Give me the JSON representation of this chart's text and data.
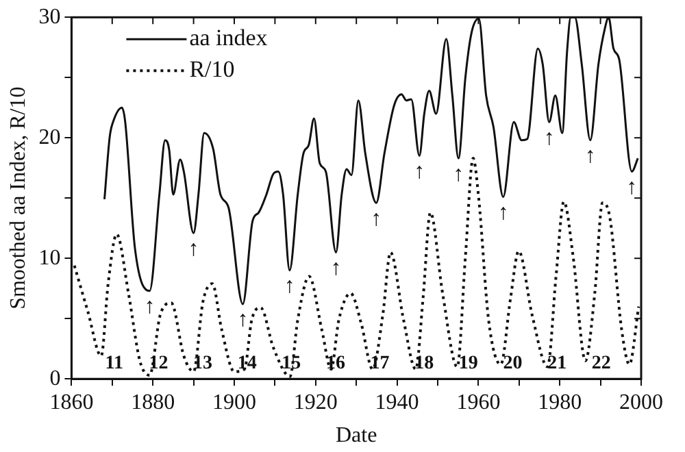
{
  "chart_data": {
    "type": "line",
    "xlabel": "Date",
    "ylabel": "Smoothed aa Index, R/10",
    "xlim": [
      1860,
      2000
    ],
    "xticks": [
      1860,
      {
        "value": 1870,
        "label": null
      },
      1880,
      {
        "value": 1890,
        "label": null
      },
      1900,
      {
        "value": 1910,
        "label": null
      },
      1920,
      {
        "value": 1930,
        "label": null
      },
      1940,
      {
        "value": 1950,
        "label": null
      },
      1960,
      {
        "value": 1970,
        "label": null
      },
      1980,
      {
        "value": 1990,
        "label": null
      },
      2000
    ],
    "ylim": [
      0,
      30
    ],
    "yticks": [
      0,
      {
        "value": 5,
        "label": null
      },
      10,
      {
        "value": 15,
        "label": null
      },
      20,
      {
        "value": 25,
        "label": null
      },
      30
    ],
    "grid": false,
    "legend": "top left",
    "marker": "none",
    "series": [
      {
        "name": "aa index",
        "color": "#111111",
        "line_style": "solid",
        "x": [
          1868.1,
          1869.4,
          1870.2,
          1872.4,
          1873.2,
          1875.6,
          1879.2,
          1881.6,
          1883.0,
          1884.0,
          1885.0,
          1886.7,
          1887.6,
          1890.0,
          1891.2,
          1892.6,
          1894.8,
          1896.6,
          1898.6,
          1902.1,
          1904.5,
          1906.0,
          1907.9,
          1909.6,
          1910.8,
          1912.0,
          1913.6,
          1915.6,
          1917.0,
          1918.3,
          1919.6,
          1921.0,
          1922.5,
          1925.0,
          1926.4,
          1927.6,
          1928.8,
          1930.5,
          1932.2,
          1934.9,
          1936.9,
          1939.3,
          1941.1,
          1942.3,
          1943.5,
          1945.5,
          1946.7,
          1947.9,
          1949.6,
          1952.1,
          1953.6,
          1955.1,
          1956.8,
          1958.3,
          1960.1,
          1961.9,
          1963.7,
          1966.1,
          1968.7,
          1970.6,
          1972.0,
          1974.6,
          1975.8,
          1977.4,
          1978.9,
          1980.6,
          1981.8,
          1982.7,
          1983.7,
          1985.4,
          1987.5,
          1989.5,
          1991.1,
          1992.0,
          1993.2,
          1994.6,
          1997.7,
          1999.2
        ],
        "values": [
          14.9,
          20.1,
          21.3,
          22.5,
          21.3,
          10.8,
          7.3,
          15.3,
          19.8,
          19.0,
          15.3,
          18.2,
          17.2,
          12.1,
          15.3,
          20.4,
          19.1,
          15.3,
          14.2,
          6.2,
          13.1,
          13.8,
          15.3,
          17.0,
          17.2,
          15.3,
          9.0,
          15.3,
          18.7,
          19.4,
          21.6,
          17.9,
          17.2,
          10.5,
          15.3,
          17.4,
          16.9,
          23.1,
          18.7,
          14.6,
          18.7,
          22.7,
          23.6,
          23.1,
          23.2,
          18.5,
          22.0,
          23.9,
          22.0,
          28.2,
          23.5,
          18.3,
          25.0,
          28.7,
          29.9,
          23.5,
          20.9,
          15.1,
          21.3,
          19.8,
          19.9,
          27.4,
          26.1,
          21.3,
          23.5,
          20.4,
          27.2,
          30,
          30,
          26.1,
          19.8,
          26.1,
          29.1,
          30,
          27.4,
          26.5,
          17.2,
          18.3
        ]
      },
      {
        "name": "R/10",
        "color": "#111111",
        "line_style": "dotted",
        "x": [
          1860.7,
          1864.0,
          1867.3,
          1869.0,
          1871.1,
          1874.0,
          1876.8,
          1879.2,
          1881.8,
          1884.5,
          1887.6,
          1890.0,
          1892.3,
          1894.6,
          1896.9,
          1900.0,
          1902.5,
          1904.3,
          1906.5,
          1909.6,
          1913.7,
          1915.6,
          1918.4,
          1921.5,
          1923.8,
          1925.7,
          1928.6,
          1931.2,
          1934.0,
          1936.5,
          1938.4,
          1941.6,
          1944.6,
          1946.4,
          1948.2,
          1951.2,
          1954.8,
          1956.8,
          1958.7,
          1960.1,
          1962.5,
          1965.5,
          1967.9,
          1969.9,
          1973.2,
          1977.0,
          1979.1,
          1981.0,
          1983.3,
          1986.3,
          1988.6,
          1990.5,
          1992.3,
          1995.2,
          1997.1,
          1999.4
        ],
        "values": [
          9.4,
          5.6,
          1.9,
          7.9,
          12.0,
          7.1,
          1.5,
          0.3,
          5.3,
          6.3,
          1.9,
          0.6,
          6.4,
          7.9,
          4.1,
          0.6,
          0.8,
          4.9,
          5.9,
          2.6,
          0.2,
          4.9,
          8.5,
          4.1,
          0.8,
          4.9,
          7.1,
          4.6,
          0.8,
          5.3,
          10.5,
          4.9,
          0.8,
          6.7,
          13.8,
          7.1,
          1.0,
          10.1,
          18.3,
          14.9,
          4.9,
          1.2,
          6.7,
          10.6,
          5.3,
          1.0,
          8.6,
          14.7,
          10.1,
          1.5,
          7.1,
          14.6,
          13.4,
          4.1,
          1.2,
          6.0
        ]
      }
    ],
    "annotations": [
      "11",
      "12",
      "13",
      "14",
      "15",
      "16",
      "17",
      "18",
      "19",
      "20",
      "21",
      "22",
      {
        "text": "↑",
        "x": 1879.2,
        "y": 7.3
      },
      {
        "text": "↑",
        "x": 1890.0,
        "y": 12.1
      },
      {
        "text": "↑",
        "x": 1902.1,
        "y": 6.2
      },
      {
        "text": "↑",
        "x": 1913.6,
        "y": 9.0
      },
      {
        "text": "↑",
        "x": 1925.0,
        "y": 10.5
      },
      {
        "text": "↑",
        "x": 1934.9,
        "y": 14.6
      },
      {
        "text": "↑",
        "x": 1945.5,
        "y": 18.5
      },
      {
        "text": "↑",
        "x": 1955.1,
        "y": 18.3
      },
      {
        "text": "↑",
        "x": 1966.1,
        "y": 15.1
      },
      {
        "text": "↑",
        "x": 1977.4,
        "y": 21.3
      },
      {
        "text": "↑",
        "x": 1987.5,
        "y": 19.8
      },
      {
        "text": "↑",
        "x": 1997.7,
        "y": 17.2
      }
    ]
  }
}
